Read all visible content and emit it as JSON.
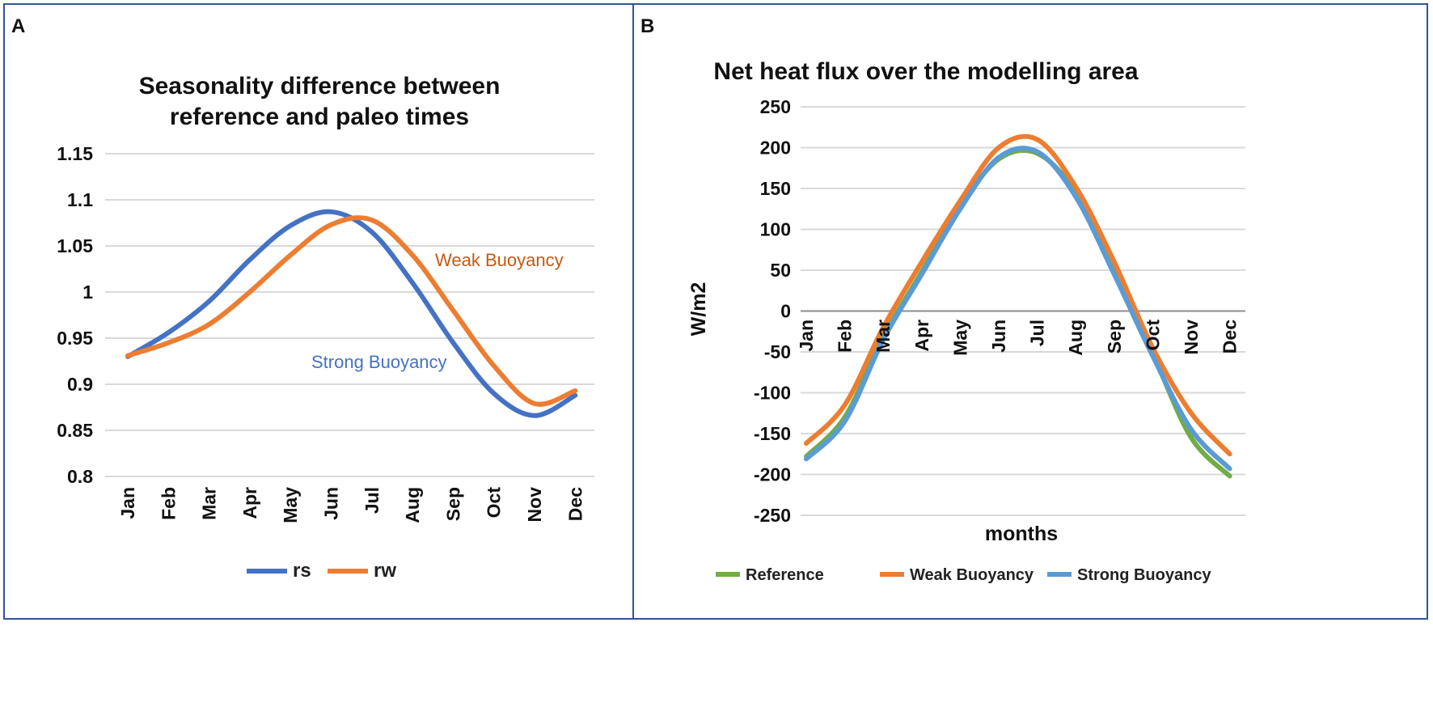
{
  "chart_data": [
    {
      "type": "line",
      "panel_label": "A",
      "title": [
        "Seasonality difference between",
        "reference and paleo times"
      ],
      "categories": [
        "Jan",
        "Feb",
        "Mar",
        "Apr",
        "May",
        "Jun",
        "Jul",
        "Aug",
        "Sep",
        "Oct",
        "Nov",
        "Dec"
      ],
      "ylim": [
        0.8,
        1.15
      ],
      "yticks": [
        "0.8",
        "0.85",
        "0.9",
        "0.95",
        "1",
        "1.05",
        "1.1",
        "1.15"
      ],
      "ytick_values": [
        0.8,
        0.85,
        0.9,
        0.95,
        1,
        1.05,
        1.1,
        1.15
      ],
      "grid": true,
      "legend_position": "bottom",
      "series": [
        {
          "name": "rs",
          "color": "#4472C4",
          "values": [
            0.93,
            0.956,
            0.99,
            1.035,
            1.072,
            1.087,
            1.065,
            1.01,
            0.945,
            0.89,
            0.866,
            0.888
          ]
        },
        {
          "name": "rw",
          "color": "#ED7D31",
          "values": [
            0.931,
            0.945,
            0.965,
            1.0,
            1.04,
            1.073,
            1.078,
            1.04,
            0.98,
            0.92,
            0.879,
            0.893
          ]
        }
      ],
      "annotations": [
        {
          "text": "Weak Buoyancy",
          "color": "#C55A11"
        },
        {
          "text": "Strong Buoyancy",
          "color": "#4472C4"
        }
      ]
    },
    {
      "type": "line",
      "panel_label": "B",
      "title": [
        "Net heat flux over the modelling area"
      ],
      "xlabel": "months",
      "ylabel": "W/m2",
      "categories": [
        "Jan",
        "Feb",
        "Mar",
        "Apr",
        "May",
        "Jun",
        "Jul",
        "Aug",
        "Sep",
        "Oct",
        "Nov",
        "Dec"
      ],
      "ylim": [
        -250,
        250
      ],
      "yticks": [
        "-250",
        "-200",
        "-150",
        "-100",
        "-50",
        "0",
        "50",
        "100",
        "150",
        "200",
        "250"
      ],
      "ytick_values": [
        -250,
        -200,
        -150,
        -100,
        -50,
        0,
        50,
        100,
        150,
        200,
        250
      ],
      "grid": true,
      "legend_position": "bottom",
      "series": [
        {
          "name": "Reference",
          "color": "#70AD47",
          "values": [
            -178,
            -130,
            -32,
            48,
            128,
            186,
            193,
            145,
            50,
            -52,
            -155,
            -202
          ]
        },
        {
          "name": "Weak Buoyancy",
          "color": "#ED7D31",
          "values": [
            -162,
            -115,
            -20,
            60,
            135,
            200,
            210,
            152,
            60,
            -45,
            -125,
            -175
          ]
        },
        {
          "name": "Strong Buoyancy",
          "color": "#5B9BD5",
          "values": [
            -181,
            -135,
            -35,
            45,
            125,
            188,
            195,
            140,
            45,
            -55,
            -145,
            -193
          ]
        }
      ]
    }
  ]
}
